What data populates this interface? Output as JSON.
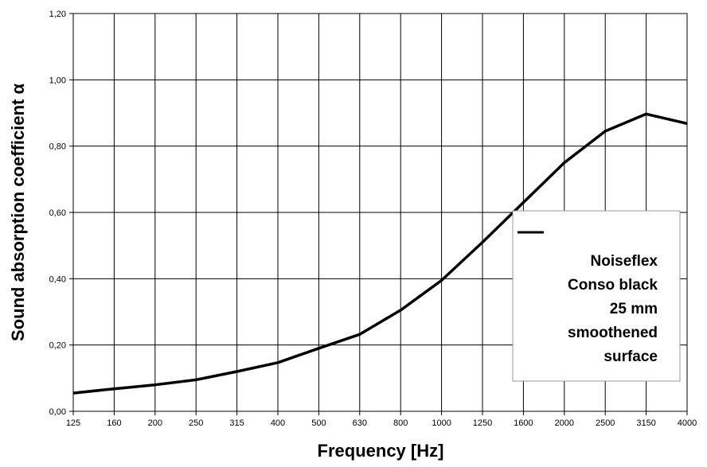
{
  "chart_data": {
    "type": "line",
    "title": "",
    "xlabel": "Frequency [Hz]",
    "ylabel": "Sound absorption coefficient α",
    "ylim": [
      0,
      1.2
    ],
    "y_ticks": [
      "0,00",
      "0,20",
      "0,40",
      "0,60",
      "0,80",
      "1,00",
      "1,20"
    ],
    "categories": [
      "125",
      "160",
      "200",
      "250",
      "315",
      "400",
      "500",
      "630",
      "800",
      "1000",
      "1250",
      "1600",
      "2000",
      "2500",
      "3150",
      "4000"
    ],
    "grid": true,
    "legend_position": "right",
    "series": [
      {
        "name": "Noiseflex Conso black 25 mm smoothened surface",
        "color": "#000000",
        "values": [
          0.055,
          0.068,
          0.08,
          0.095,
          0.12,
          0.147,
          0.19,
          0.232,
          0.305,
          0.395,
          0.51,
          0.63,
          0.75,
          0.845,
          0.897,
          0.868
        ]
      }
    ],
    "legend_lines": [
      "Noiseflex",
      "Conso black",
      "25 mm",
      "smoothened",
      "surface"
    ]
  }
}
